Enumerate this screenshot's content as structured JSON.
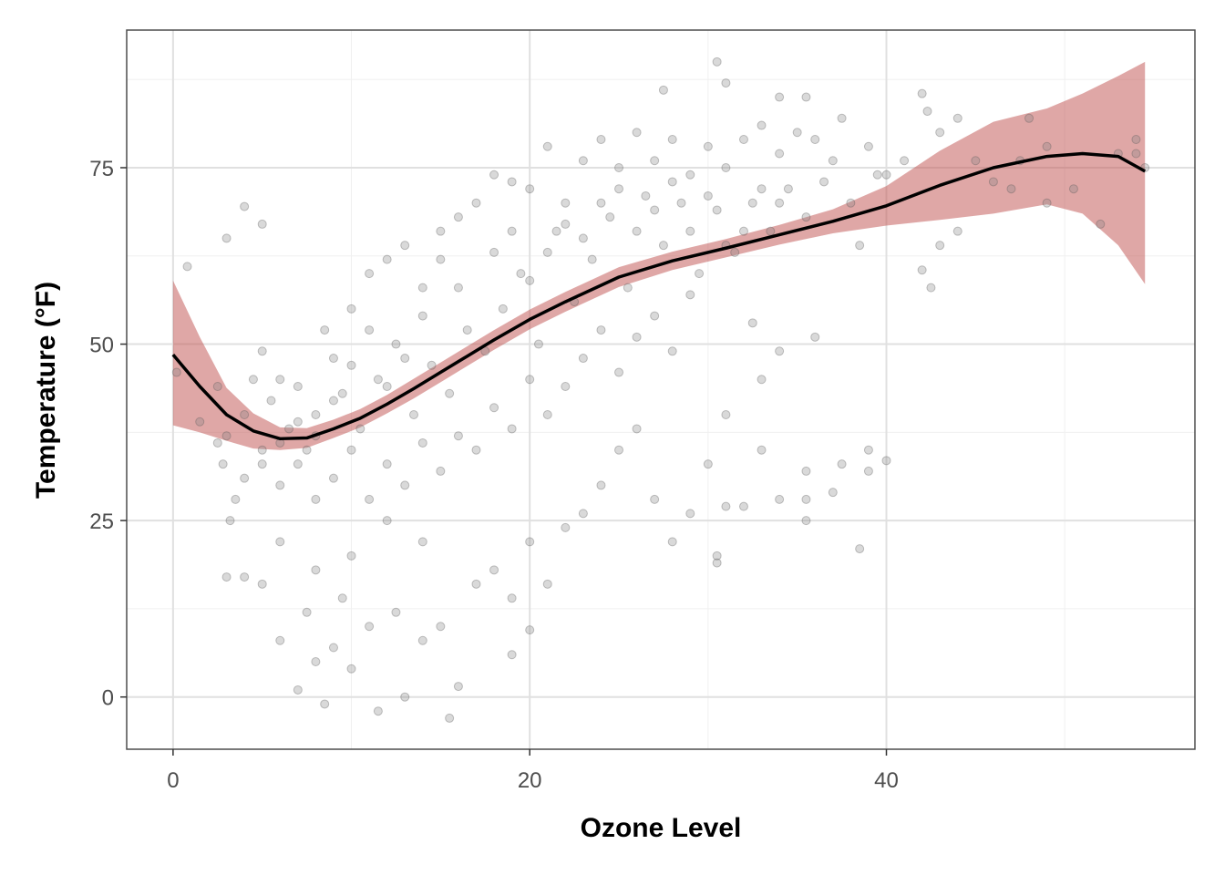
{
  "chart_data": {
    "type": "scatter",
    "title": "",
    "xlabel": "Ozone Level",
    "ylabel": "Temperature (°F)",
    "xlim": [
      -2.6,
      57.3
    ],
    "ylim": [
      -7.4,
      94.5
    ],
    "xticks": [
      0,
      20,
      40
    ],
    "xtick_labels": [
      "0",
      "20",
      "40"
    ],
    "yticks": [
      0,
      25,
      50,
      75
    ],
    "ytick_labels": [
      "0",
      "25",
      "50",
      "75"
    ],
    "grid": true,
    "colors": {
      "points": "#808080",
      "smooth_line": "#000000",
      "ribbon": "#c0504d",
      "panel_border": "#4d4d4d",
      "grid": "#e0e0e0"
    },
    "smooth": {
      "x": [
        0,
        1.5,
        3,
        4.5,
        6,
        7.5,
        9,
        10.5,
        12,
        13.5,
        15,
        16.5,
        18,
        20,
        22,
        25,
        28,
        31,
        34,
        37,
        40,
        43,
        46,
        49,
        51,
        53,
        54.5
      ],
      "y": [
        48.5,
        44,
        40,
        37.7,
        36.6,
        36.7,
        38,
        39.5,
        41.5,
        43.7,
        46,
        48.3,
        50.6,
        53.5,
        56,
        59.5,
        61.8,
        63.6,
        65.5,
        67.4,
        69.6,
        72.5,
        75,
        76.6,
        77,
        76.6,
        74.5
      ],
      "lower": [
        38.5,
        37.5,
        36.3,
        35.2,
        35,
        35.3,
        36.7,
        38.2,
        40.2,
        42.3,
        44.6,
        46.9,
        49.2,
        52.1,
        54.6,
        58.1,
        60.5,
        62.3,
        64.1,
        65.7,
        66.8,
        67.6,
        68.5,
        69.8,
        68.5,
        64,
        58.5
      ],
      "upper": [
        59,
        51,
        43.8,
        40.2,
        38.2,
        38.1,
        39.3,
        40.8,
        42.8,
        45.1,
        47.4,
        49.7,
        52,
        54.9,
        57.4,
        60.9,
        63.1,
        64.9,
        66.9,
        69.1,
        72.4,
        77.4,
        81.5,
        83.4,
        85.5,
        88,
        90
      ]
    },
    "points": [
      [
        0.2,
        46
      ],
      [
        0.8,
        61
      ],
      [
        1.5,
        39
      ],
      [
        2.5,
        36
      ],
      [
        3,
        17
      ],
      [
        4,
        17
      ],
      [
        3,
        65
      ],
      [
        5,
        67
      ],
      [
        4,
        69.5
      ],
      [
        2.8,
        33
      ],
      [
        3.2,
        25
      ],
      [
        3.5,
        28
      ],
      [
        4,
        40
      ],
      [
        4.5,
        45
      ],
      [
        5,
        49
      ],
      [
        5.5,
        42
      ],
      [
        6,
        45
      ],
      [
        6.5,
        38
      ],
      [
        7,
        44
      ],
      [
        7.5,
        35
      ],
      [
        8,
        40
      ],
      [
        8.5,
        52
      ],
      [
        9,
        48
      ],
      [
        9.5,
        43
      ],
      [
        10,
        55
      ],
      [
        10.5,
        38
      ],
      [
        11,
        60
      ],
      [
        11.5,
        45
      ],
      [
        12,
        62
      ],
      [
        12.5,
        50
      ],
      [
        13,
        64
      ],
      [
        13.5,
        40
      ],
      [
        14,
        58
      ],
      [
        14.5,
        47
      ],
      [
        15,
        66
      ],
      [
        15.5,
        43
      ],
      [
        16,
        68
      ],
      [
        16.5,
        52
      ],
      [
        17,
        70
      ],
      [
        17.5,
        49
      ],
      [
        18,
        74
      ],
      [
        18.5,
        55
      ],
      [
        19,
        73
      ],
      [
        19.5,
        60
      ],
      [
        20,
        72
      ],
      [
        20.5,
        50
      ],
      [
        21,
        78
      ],
      [
        21.5,
        66
      ],
      [
        22,
        70
      ],
      [
        22.5,
        56
      ],
      [
        23,
        76
      ],
      [
        23.5,
        62
      ],
      [
        24,
        79
      ],
      [
        24.5,
        68
      ],
      [
        25,
        75
      ],
      [
        25.5,
        58
      ],
      [
        26,
        80
      ],
      [
        26.5,
        71
      ],
      [
        27,
        76
      ],
      [
        27.5,
        64
      ],
      [
        28,
        79
      ],
      [
        28.5,
        70
      ],
      [
        29,
        74
      ],
      [
        29.5,
        60
      ],
      [
        30,
        78
      ],
      [
        30.5,
        69
      ],
      [
        31,
        75
      ],
      [
        31.5,
        63
      ],
      [
        32,
        79
      ],
      [
        32.5,
        70
      ],
      [
        33,
        81
      ],
      [
        33.5,
        66
      ],
      [
        34,
        77
      ],
      [
        34.5,
        72
      ],
      [
        35,
        80
      ],
      [
        35.5,
        68
      ],
      [
        36,
        79
      ],
      [
        36.5,
        73
      ],
      [
        37,
        76
      ],
      [
        37.5,
        82
      ],
      [
        38,
        70
      ],
      [
        38.5,
        64
      ],
      [
        39,
        78
      ],
      [
        39.5,
        74
      ],
      [
        8.5,
        -1
      ],
      [
        11.5,
        -2
      ],
      [
        15.5,
        -3
      ],
      [
        13,
        0
      ],
      [
        16,
        1.5
      ],
      [
        10,
        4
      ],
      [
        9,
        7
      ],
      [
        8,
        5
      ],
      [
        7,
        1
      ],
      [
        6,
        8
      ],
      [
        5,
        16
      ],
      [
        7.5,
        12
      ],
      [
        9.5,
        14
      ],
      [
        11,
        10
      ],
      [
        12.5,
        12
      ],
      [
        14,
        8
      ],
      [
        15,
        10
      ],
      [
        14,
        22
      ],
      [
        12,
        25
      ],
      [
        10,
        20
      ],
      [
        8,
        18
      ],
      [
        6,
        22
      ],
      [
        17,
        16
      ],
      [
        18,
        18
      ],
      [
        19,
        14
      ],
      [
        20,
        9.5
      ],
      [
        19,
        6
      ],
      [
        20,
        22
      ],
      [
        21,
        16
      ],
      [
        22,
        24
      ],
      [
        23,
        26
      ],
      [
        24,
        30
      ],
      [
        25,
        35
      ],
      [
        26,
        38
      ],
      [
        27,
        28
      ],
      [
        28,
        22
      ],
      [
        29,
        26
      ],
      [
        30,
        33
      ],
      [
        30.5,
        20
      ],
      [
        30.5,
        19
      ],
      [
        31,
        27
      ],
      [
        32,
        27
      ],
      [
        33,
        35
      ],
      [
        34,
        28
      ],
      [
        35.5,
        32
      ],
      [
        35.5,
        28
      ],
      [
        35.5,
        25
      ],
      [
        37,
        29
      ],
      [
        37.5,
        33
      ],
      [
        38.5,
        21
      ],
      [
        39,
        35
      ],
      [
        39,
        32
      ],
      [
        40,
        33.5
      ],
      [
        36,
        51
      ],
      [
        34,
        49
      ],
      [
        33,
        45
      ],
      [
        32.5,
        53
      ],
      [
        31,
        40
      ],
      [
        30.5,
        90
      ],
      [
        31,
        87
      ],
      [
        27.5,
        86
      ],
      [
        34,
        85
      ],
      [
        35.5,
        85
      ],
      [
        42,
        85.5
      ],
      [
        42.3,
        83
      ],
      [
        43,
        80
      ],
      [
        44,
        82
      ],
      [
        45,
        76
      ],
      [
        46,
        73
      ],
      [
        47,
        72
      ],
      [
        48,
        82
      ],
      [
        47.5,
        76
      ],
      [
        49,
        78
      ],
      [
        49,
        70
      ],
      [
        50.5,
        72
      ],
      [
        52,
        67
      ],
      [
        53,
        77
      ],
      [
        54,
        79
      ],
      [
        54.5,
        75
      ],
      [
        54,
        77
      ],
      [
        44,
        66
      ],
      [
        42.5,
        58
      ],
      [
        42,
        60.5
      ],
      [
        41,
        76
      ],
      [
        40,
        74
      ],
      [
        43,
        64
      ],
      [
        5,
        35
      ],
      [
        6,
        30
      ],
      [
        7,
        33
      ],
      [
        8,
        28
      ],
      [
        9,
        31
      ],
      [
        10,
        35
      ],
      [
        11,
        28
      ],
      [
        12,
        33
      ],
      [
        13,
        30
      ],
      [
        14,
        36
      ],
      [
        15,
        32
      ],
      [
        16,
        37
      ],
      [
        17,
        35
      ],
      [
        18,
        41
      ],
      [
        19,
        38
      ],
      [
        20,
        45
      ],
      [
        21,
        40
      ],
      [
        22,
        44
      ],
      [
        23,
        48
      ],
      [
        24,
        52
      ],
      [
        25,
        46
      ],
      [
        26,
        51
      ],
      [
        27,
        54
      ],
      [
        28,
        49
      ],
      [
        29,
        57
      ],
      [
        16,
        58
      ],
      [
        15,
        62
      ],
      [
        14,
        54
      ],
      [
        13,
        48
      ],
      [
        12,
        44
      ],
      [
        11,
        52
      ],
      [
        10,
        47
      ],
      [
        9,
        42
      ],
      [
        8,
        37
      ],
      [
        7,
        39
      ],
      [
        6,
        36
      ],
      [
        5,
        33
      ],
      [
        4,
        31
      ],
      [
        3,
        37
      ],
      [
        2.5,
        44
      ],
      [
        18,
        63
      ],
      [
        19,
        66
      ],
      [
        20,
        59
      ],
      [
        21,
        63
      ],
      [
        22,
        67
      ],
      [
        23,
        65
      ],
      [
        24,
        70
      ],
      [
        25,
        72
      ],
      [
        26,
        66
      ],
      [
        27,
        69
      ],
      [
        28,
        73
      ],
      [
        29,
        66
      ],
      [
        30,
        71
      ],
      [
        31,
        64
      ],
      [
        32,
        66
      ],
      [
        33,
        72
      ],
      [
        34,
        70
      ]
    ]
  }
}
